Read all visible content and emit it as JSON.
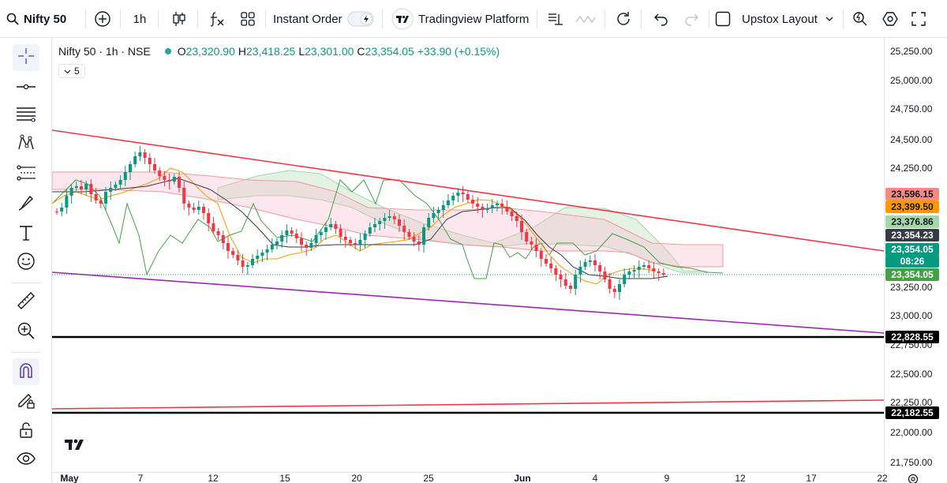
{
  "toolbar": {
    "symbol": "Nifty 50",
    "interval": "1h",
    "instant_order": "Instant Order",
    "platform": "Tradingview Platform",
    "layout": "Upstox Layout"
  },
  "legend": {
    "symbol": "Nifty 50 · 1h · NSE",
    "o_key": "O",
    "o_val": "23,320.90",
    "h_key": "H",
    "h_val": "23,418.25",
    "l_key": "L",
    "l_val": "23,301.00",
    "c_key": "C",
    "c_val": "23,354.05",
    "change": "+33.90 (+0.15%)",
    "indicator_count": "5"
  },
  "price_axis": [
    "25,250.00",
    "25,000.00",
    "24,750.00",
    "24,500.00",
    "24,250.00",
    "23,250.00",
    "23,000.00",
    "22,750.00",
    "22,500.00",
    "22,250.00",
    "22,000.00",
    "21,750.00"
  ],
  "price_tags": [
    {
      "text": "23,596.15",
      "bg": "#f28b82",
      "fg": "#131722"
    },
    {
      "text": "23,399.50",
      "bg": "#ff9800",
      "fg": "#131722"
    },
    {
      "text": "23,376.86",
      "bg": "#a5d6a7",
      "fg": "#131722"
    },
    {
      "text": "23,354.23",
      "bg": "#363a45",
      "fg": "#ffffff"
    },
    {
      "text": "23,354.05",
      "bg": "#089981",
      "fg": "#ffffff"
    },
    {
      "text": "08:26",
      "bg": "#089981",
      "fg": "#ffffff"
    },
    {
      "text": "23,354.05",
      "bg": "#43a047",
      "fg": "#ffffff"
    },
    {
      "text": "22,828.55",
      "bg": "#000000",
      "fg": "#ffffff"
    },
    {
      "text": "22,182.55",
      "bg": "#000000",
      "fg": "#ffffff"
    }
  ],
  "time_axis": [
    "May",
    "7",
    "12",
    "15",
    "20",
    "25",
    "Jun",
    "4",
    "9",
    "12",
    "17",
    "22"
  ],
  "colors": {
    "up": "#089981",
    "down": "#f23645",
    "resistance": "#f23645",
    "support": "#9c27b0",
    "level": "#000000"
  }
}
